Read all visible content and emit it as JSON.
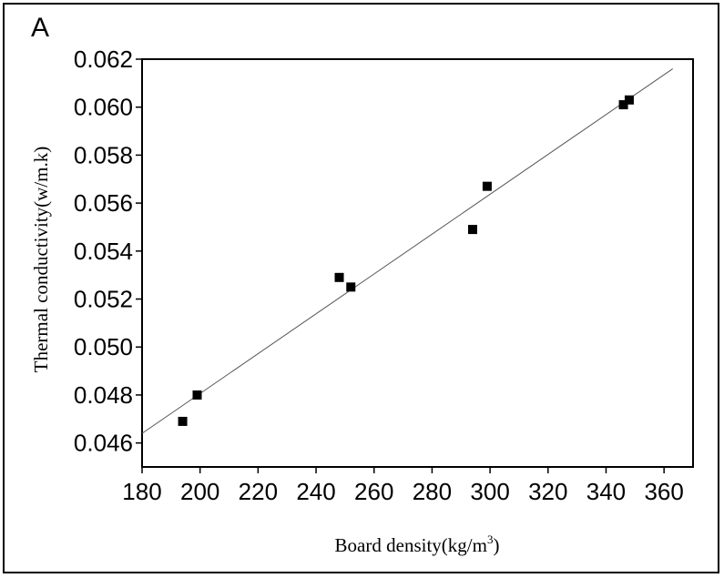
{
  "panel_label": "A",
  "chart_data": {
    "type": "scatter",
    "title": "",
    "xlabel": "Board density(kg/m",
    "xlabel_sup": "3",
    "xlabel_suffix": ")",
    "ylabel": "Thermal conductivity(w/m.k)",
    "xlim": [
      180,
      370
    ],
    "ylim": [
      0.045,
      0.062
    ],
    "x_ticks": [
      180,
      200,
      220,
      240,
      260,
      280,
      300,
      320,
      340,
      360
    ],
    "x_tick_labels": [
      "180",
      "200",
      "220",
      "240",
      "260",
      "280",
      "300",
      "320",
      "340",
      "360"
    ],
    "y_ticks": [
      0.046,
      0.048,
      0.05,
      0.052,
      0.054,
      0.056,
      0.058,
      0.06,
      0.062
    ],
    "y_tick_labels": [
      "0.046",
      "0.048",
      "0.050",
      "0.052",
      "0.054",
      "0.056",
      "0.058",
      "0.060",
      "0.062"
    ],
    "grid": false,
    "series": [
      {
        "marker": "square",
        "color": "#000000",
        "x": [
          194,
          199,
          248,
          252,
          294,
          299,
          346,
          348
        ],
        "y": [
          0.0469,
          0.048,
          0.0529,
          0.0525,
          0.0549,
          0.0567,
          0.0601,
          0.0603
        ]
      }
    ],
    "fit_line": {
      "x": [
        180,
        363
      ],
      "y": [
        0.0464,
        0.0616
      ],
      "color": "#555555"
    }
  }
}
